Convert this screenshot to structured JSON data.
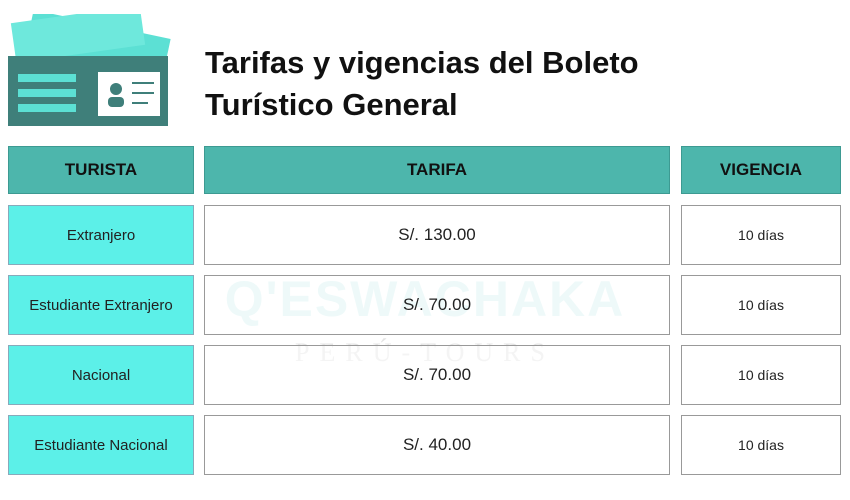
{
  "header": {
    "title": "Tarifas y vigencias del Boleto Turístico General"
  },
  "watermark": {
    "brand": "Q'ESWACHAKA",
    "tagline": "PERÚ-TOURS"
  },
  "table": {
    "columns": [
      "TURISTA",
      "TARIFA",
      "VIGENCIA"
    ],
    "rows": [
      [
        "Extranjero",
        "S/. 130.00",
        "10 días"
      ],
      [
        "Estudiante Extranjero",
        "S/. 70.00",
        "10 días"
      ],
      [
        "Nacional",
        "S/. 70.00",
        "10 días"
      ],
      [
        "Estudiante Nacional",
        "S/. 40.00",
        "10 días"
      ]
    ]
  }
}
